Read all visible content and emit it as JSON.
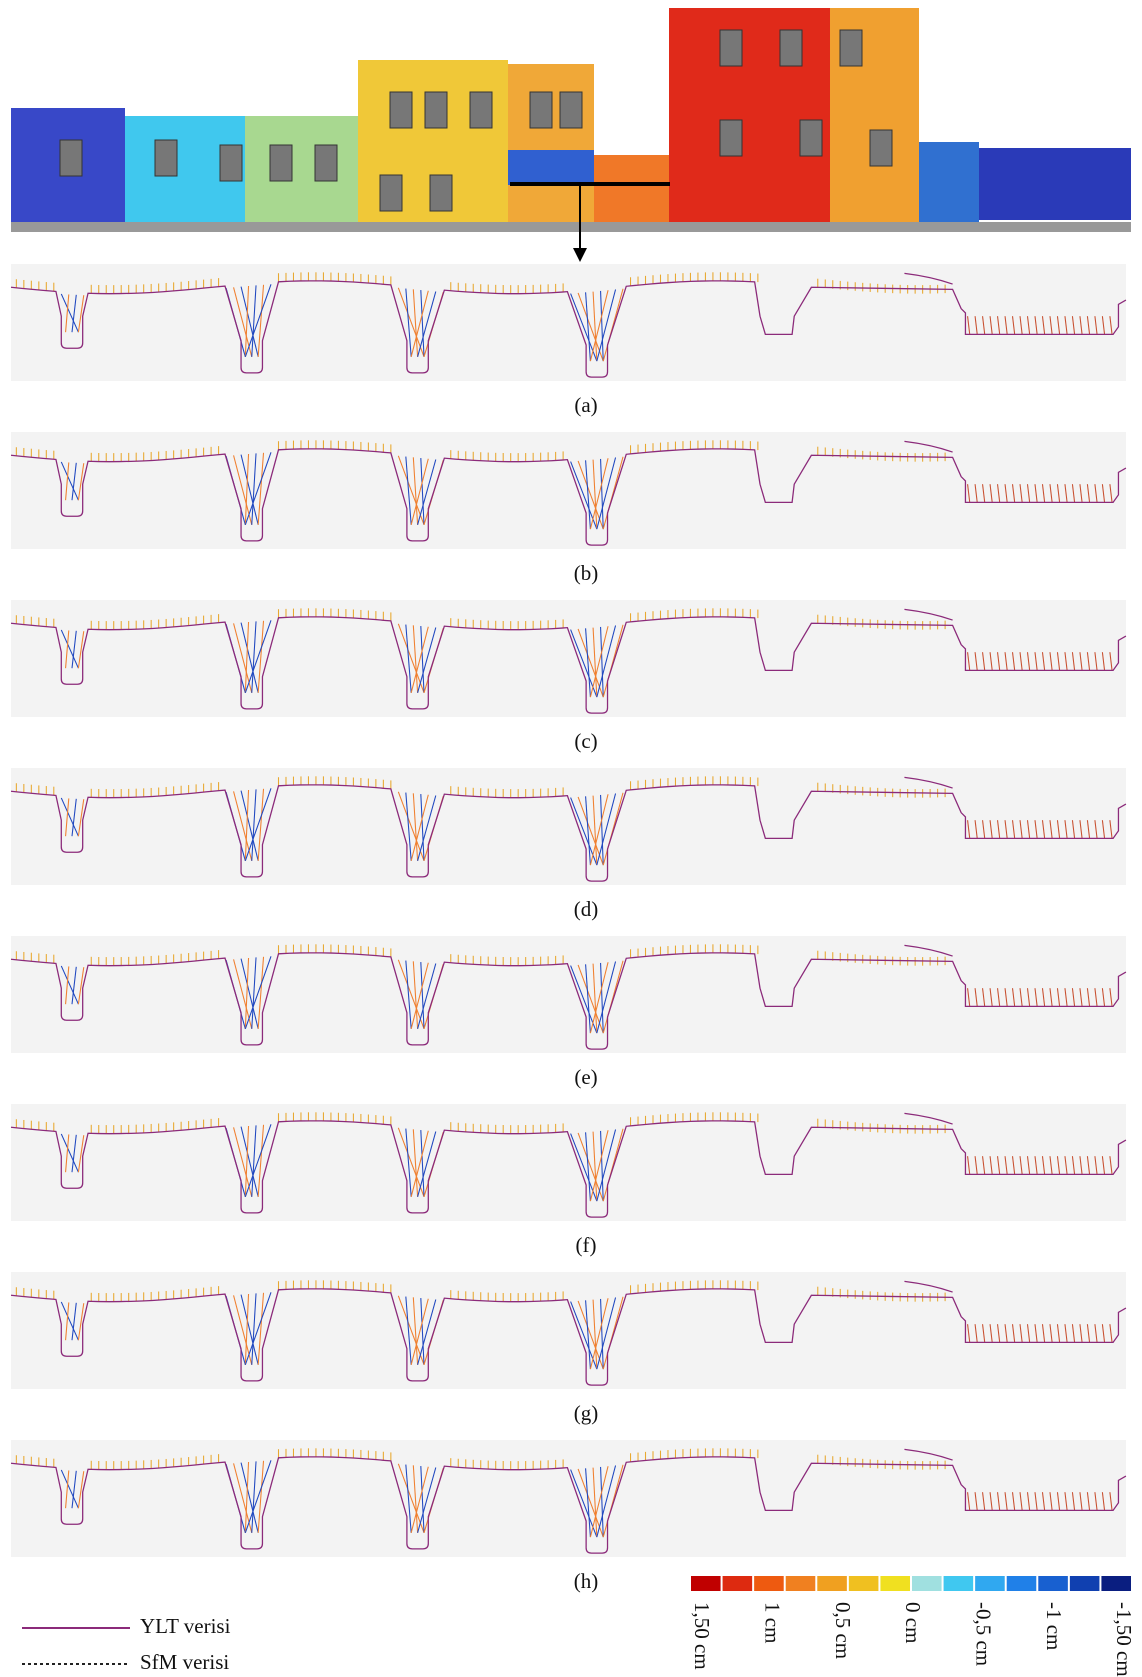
{
  "figure": {
    "panels": [
      "(a)",
      "(b)",
      "(c)",
      "(d)",
      "(e)",
      "(f)",
      "(g)",
      "(h)"
    ],
    "legend": [
      {
        "label": "YLT verisi",
        "color": "#8b2a7a",
        "dash": "solid"
      },
      {
        "label": "SfM verisi",
        "color": "#222222",
        "dash": "dotted"
      }
    ],
    "colorbar": {
      "colors": [
        "#c00000",
        "#dd2a10",
        "#ee5a10",
        "#f08020",
        "#f0a020",
        "#f0c020",
        "#f0e020",
        "#a0e0e0",
        "#40c8f0",
        "#30a8f0",
        "#2080e8",
        "#1860d0",
        "#1040b0",
        "#0a1e80"
      ],
      "labels": [
        "1,50 cm",
        "1 cm",
        "0,5 cm",
        "0 cm",
        "-0,5 cm",
        "-1 cm",
        "-1,50 cm"
      ]
    }
  }
}
